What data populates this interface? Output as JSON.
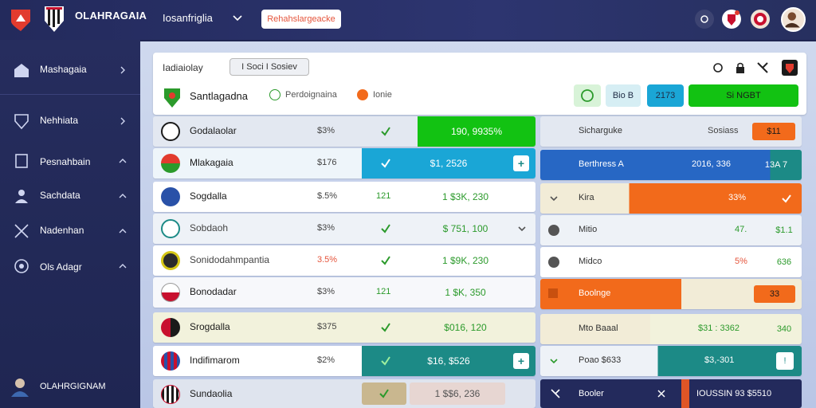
{
  "topbar": {
    "brand": "OLAHRAGAIA",
    "brand_sub": "",
    "nav_select": "Iosanfriglia",
    "cta_label": "Rehahslargeacke"
  },
  "sidebar": {
    "items": [
      {
        "label": "Mashagaia",
        "sub": ""
      },
      {
        "label": "Nehhiata",
        "sub": ""
      },
      {
        "label": "Pesnahbain",
        "sub": ""
      },
      {
        "label": "Sachdata",
        "sub": ""
      },
      {
        "label": "Nadenhan",
        "sub": ""
      },
      {
        "label": "Ols Adagr",
        "sub": ""
      }
    ],
    "user_label": "OLAHRGIGNAM"
  },
  "header": {
    "title": "Iadiaiolay",
    "pill": "I Soci I Sosiev",
    "team_name": "Santlagadna",
    "tag1": "Perdoignaina",
    "tag2": "Ionie",
    "btn1": "Bio B",
    "btn2": "2173",
    "btn3": "Si NGBT"
  },
  "left_rows": [
    {
      "name": "Godalaolar",
      "pct": "$3%",
      "cell": "190, 9935%"
    },
    {
      "name": "Mlakagaia",
      "pct": "$176",
      "cell": "$1, 2526"
    },
    {
      "name": "Sogdalla",
      "pct": "$.5%",
      "num": "121",
      "cell": "1 $3K, 230"
    },
    {
      "name": "Sobdaoh",
      "pct": "$3%",
      "cell": "$ 751, 100"
    },
    {
      "name": "Sonidodahmpantia",
      "pct": "3.5%",
      "cell": "1 $9K, 230"
    },
    {
      "name": "Bonodadar",
      "pct": "$3%",
      "num": "121",
      "cell": "1 $K, 350"
    },
    {
      "name": "Srogdalla",
      "pct": "$375",
      "cell": "$016, 120"
    },
    {
      "name": "Indifimarom",
      "pct": "$2%",
      "cell": "$16, $526"
    },
    {
      "name": "Sundaolia",
      "pct": "",
      "cell": "1 $$6, 236"
    }
  ],
  "right_rows": [
    {
      "label": "Sicharguke",
      "val": "Sosiass",
      "badge": "$11"
    },
    {
      "label": "Berthress A",
      "val": "2016, 336",
      "badge": "13A 7"
    },
    {
      "label": "Kira",
      "val": "33%",
      "badge": ""
    },
    {
      "label": "Mitio",
      "val": "47.",
      "badge": "$1.1"
    },
    {
      "label": "Midco",
      "val": "5%",
      "badge": "636"
    },
    {
      "label": "Boolnge",
      "val": "",
      "badge": "33"
    },
    {
      "label": "Mto Baaal",
      "val": "$31 : 3362",
      "badge": "340"
    },
    {
      "label": "Poao $633",
      "val": "$3,-301",
      "badge": ""
    },
    {
      "label": "Booler",
      "val": "IOUSSIN 93 $5510",
      "badge": ""
    }
  ],
  "colors": {
    "green": "#12c212",
    "teal": "#1c8a86",
    "cyan": "#1aa6d6",
    "blue": "#2767c4",
    "orange": "#f26a1b",
    "navy": "#232a5c"
  }
}
